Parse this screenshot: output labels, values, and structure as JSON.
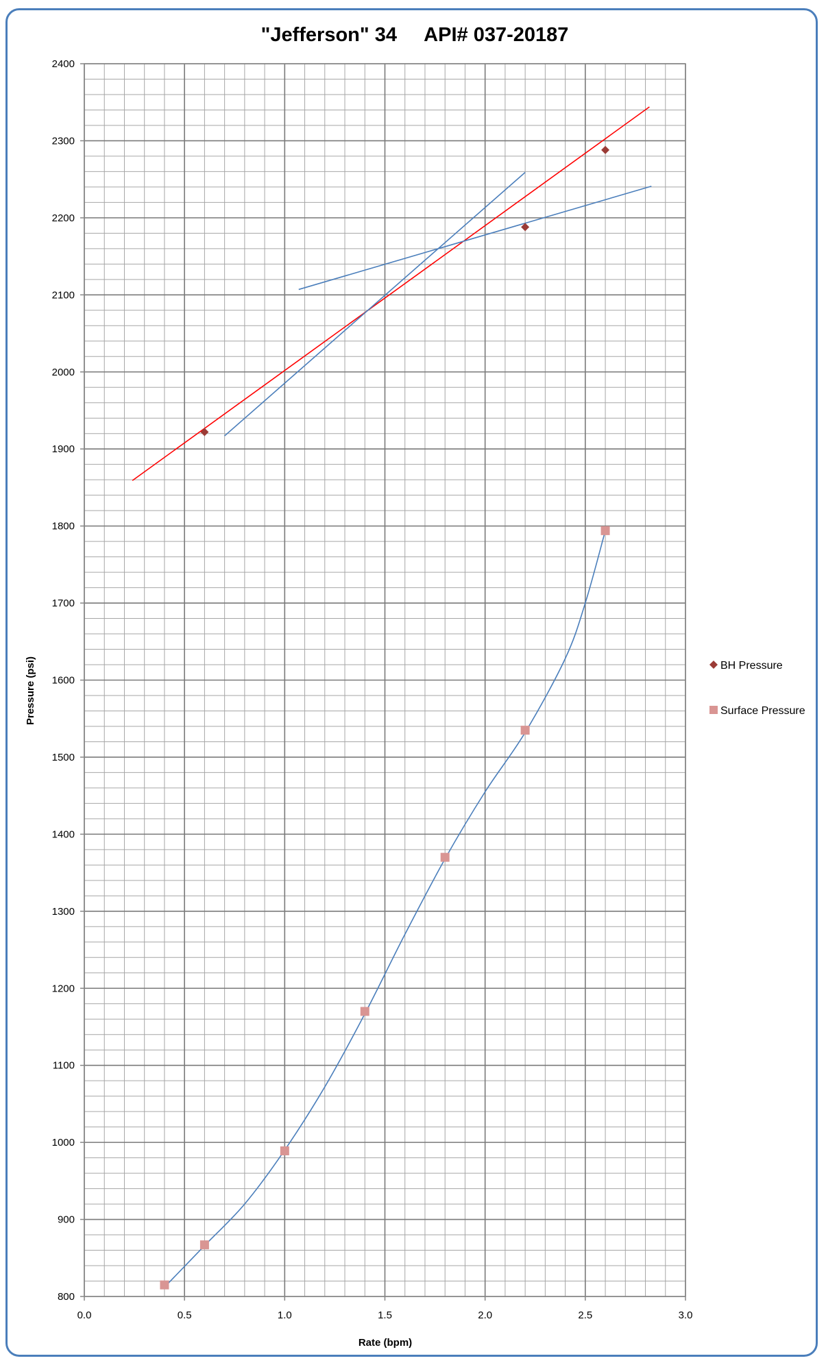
{
  "chart_data": {
    "type": "scatter",
    "title": "\"Jefferson\" 34     API# 037-20187",
    "xlabel": "Rate (bpm)",
    "ylabel": "Pressure (psi)",
    "xlim": [
      0,
      3.0
    ],
    "ylim": [
      800,
      2400
    ],
    "x_ticks": [
      "0.0",
      "0.5",
      "1.0",
      "1.5",
      "2.0",
      "2.5",
      "3.0"
    ],
    "y_ticks": [
      "800",
      "900",
      "1000",
      "1100",
      "1200",
      "1300",
      "1400",
      "1500",
      "1600",
      "1700",
      "1800",
      "1900",
      "2000",
      "2100",
      "2200",
      "2300",
      "2400"
    ],
    "grid": true,
    "legend_position": "right",
    "series": [
      {
        "name": "BH Pressure",
        "marker": "diamond",
        "color": "#9b3b36",
        "points": [
          [
            0.6,
            1922
          ],
          [
            2.2,
            2188
          ],
          [
            2.6,
            2288
          ]
        ]
      },
      {
        "name": "Surface Pressure",
        "marker": "square",
        "color": "#d99593",
        "points": [
          [
            0.4,
            815
          ],
          [
            0.6,
            867
          ],
          [
            1.0,
            989
          ],
          [
            1.4,
            1170
          ],
          [
            1.8,
            1370
          ],
          [
            2.2,
            1535
          ],
          [
            2.6,
            1794
          ]
        ]
      }
    ],
    "lines": [
      {
        "color": "#ff0000",
        "points": [
          [
            0.24,
            1859
          ],
          [
            2.82,
            2344
          ]
        ]
      },
      {
        "color": "#4a7ebb",
        "points": [
          [
            0.7,
            1917
          ],
          [
            2.2,
            2259
          ]
        ]
      },
      {
        "color": "#4a7ebb",
        "points": [
          [
            1.07,
            2107
          ],
          [
            2.83,
            2241
          ]
        ]
      }
    ],
    "curve": {
      "color": "#4a7ebb",
      "points": [
        [
          0.4,
          812
        ],
        [
          0.6,
          866
        ],
        [
          0.8,
          920
        ],
        [
          1.0,
          990
        ],
        [
          1.2,
          1072
        ],
        [
          1.4,
          1167
        ],
        [
          1.6,
          1270
        ],
        [
          1.8,
          1368
        ],
        [
          2.0,
          1455
        ],
        [
          2.2,
          1532
        ],
        [
          2.4,
          1628
        ],
        [
          2.5,
          1700
        ],
        [
          2.6,
          1794
        ]
      ]
    }
  }
}
